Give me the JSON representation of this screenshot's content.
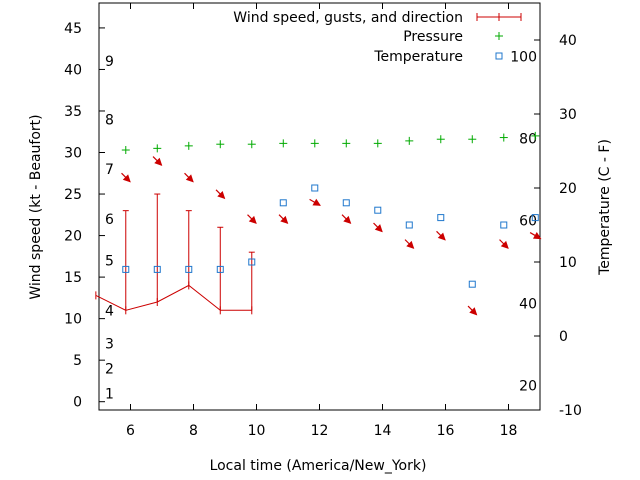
{
  "chart_data": {
    "type": "line",
    "title": "",
    "xlabel": "Local time (America/New_York)",
    "ylabel": "Wind speed (kt - Beaufort)",
    "y2label": "Temperature (C - F)",
    "xlim": [
      5,
      19
    ],
    "ylim": [
      -1,
      48
    ],
    "y2lim": [
      -10,
      45
    ],
    "x_ticks": [
      6,
      8,
      10,
      12,
      14,
      16,
      18
    ],
    "y_ticks": [
      0,
      5,
      10,
      15,
      20,
      25,
      30,
      35,
      40,
      45
    ],
    "y2_ticks": [
      -10,
      0,
      10,
      20,
      30,
      40
    ],
    "beaufort_labels": [
      {
        "text": "1",
        "kt": 1
      },
      {
        "text": "2",
        "kt": 4
      },
      {
        "text": "3",
        "kt": 7
      },
      {
        "text": "4",
        "kt": 11
      },
      {
        "text": "5",
        "kt": 17
      },
      {
        "text": "6",
        "kt": 22
      },
      {
        "text": "7",
        "kt": 28
      },
      {
        "text": "8",
        "kt": 34
      },
      {
        "text": "9",
        "kt": 41
      }
    ],
    "fahrenheit_labels": [
      {
        "text": "20",
        "c": -6.7
      },
      {
        "text": "40",
        "c": 4.4
      },
      {
        "text": "60",
        "c": 15.6
      },
      {
        "text": "80",
        "c": 26.7
      },
      {
        "text": "100",
        "c": 37.8
      }
    ],
    "legend": {
      "wind": "Wind speed, gusts, and direction",
      "pressure": "Pressure",
      "temperature": "Temperature"
    },
    "colors": {
      "wind": "#cc0000",
      "pressure": "#00aa00",
      "temperature": "#1f77cc"
    },
    "series": [
      {
        "name": "Wind speed",
        "axis": "y",
        "x": [
          4.9,
          5.85,
          6.85,
          7.85,
          8.85,
          9.85
        ],
        "values": [
          12.8,
          11,
          12,
          14,
          11,
          11
        ],
        "gusts": [
          null,
          23,
          25,
          23,
          21,
          18
        ]
      },
      {
        "name": "Pressure",
        "axis": "y",
        "x": [
          5.85,
          6.85,
          7.85,
          8.85,
          9.85,
          10.85,
          11.85,
          12.85,
          13.85,
          14.85,
          15.85,
          16.85,
          17.85,
          18.85
        ],
        "values": [
          30.3,
          30.5,
          30.8,
          31.0,
          31.0,
          31.1,
          31.1,
          31.1,
          31.1,
          31.4,
          31.6,
          31.6,
          31.8,
          32.0
        ]
      },
      {
        "name": "Temperature",
        "axis": "y2",
        "x": [
          5.85,
          6.85,
          7.85,
          8.85,
          9.85,
          10.85,
          11.85,
          12.85,
          13.85,
          14.85,
          15.85,
          16.85,
          17.85,
          18.85
        ],
        "values": [
          9,
          9,
          9,
          9,
          10,
          18,
          20,
          18,
          17,
          15,
          16,
          7,
          15,
          16
        ]
      },
      {
        "name": "Wind direction",
        "axis": "y",
        "x": [
          5.85,
          6.85,
          7.85,
          8.85,
          9.85,
          10.85,
          11.85,
          12.85,
          13.85,
          14.85,
          15.85,
          16.85,
          17.85,
          18.85
        ],
        "values": [
          27,
          29,
          27,
          25,
          22,
          22,
          24,
          22,
          21,
          19,
          20,
          11,
          19,
          20
        ],
        "direction_deg": [
          315,
          315,
          315,
          315,
          315,
          315,
          300,
          315,
          315,
          315,
          315,
          315,
          315,
          300
        ]
      }
    ]
  }
}
